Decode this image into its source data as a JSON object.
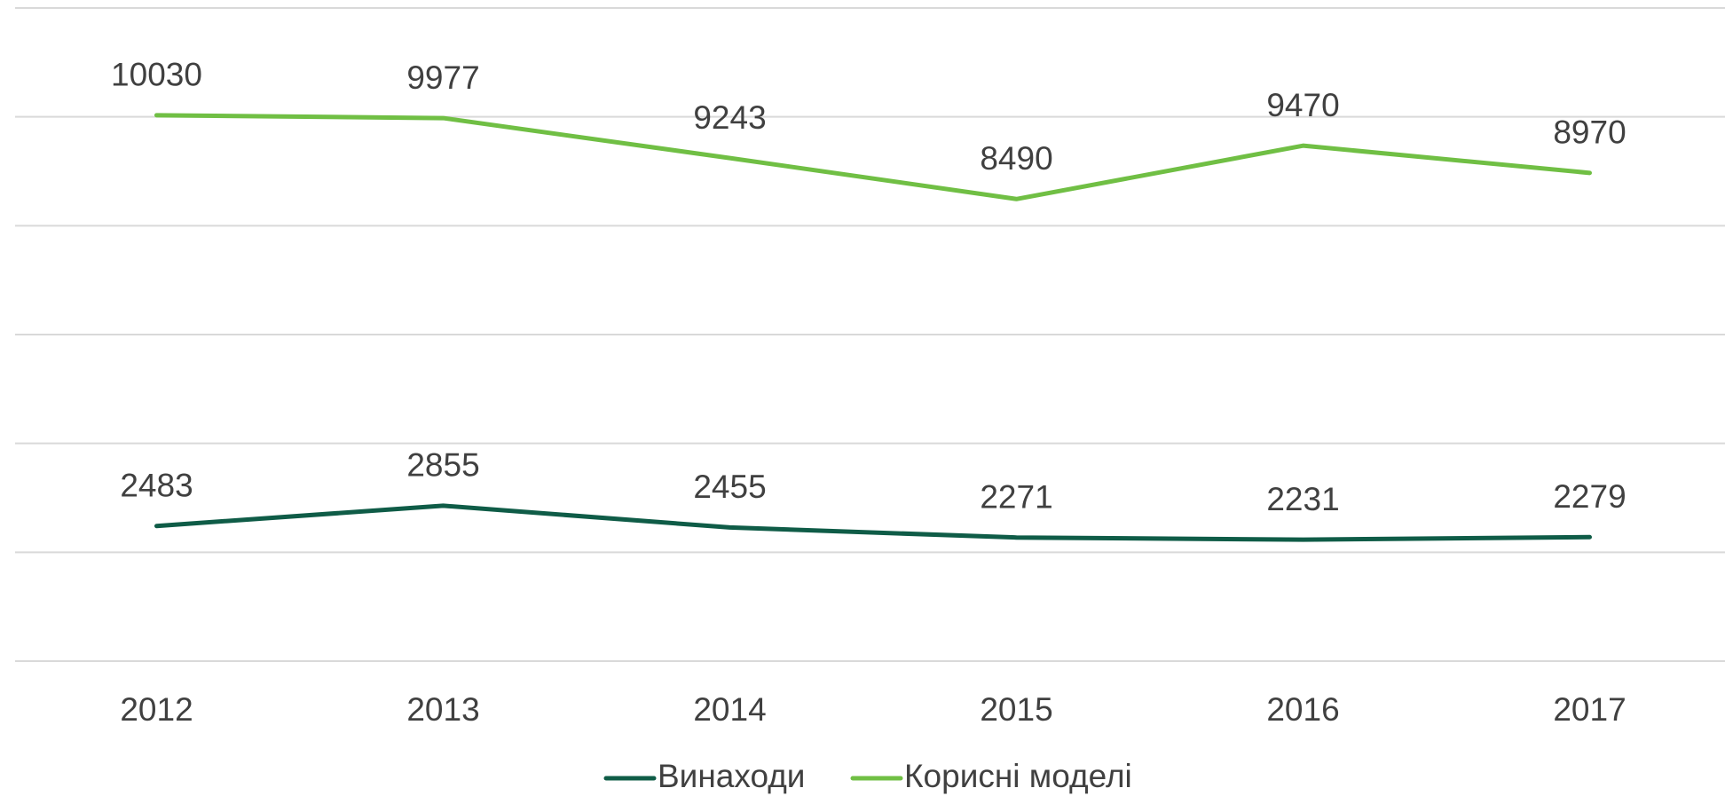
{
  "chart_data": {
    "type": "line",
    "categories": [
      "2012",
      "2013",
      "2014",
      "2015",
      "2016",
      "2017"
    ],
    "series": [
      {
        "name": "Винаходи",
        "color": "#0f5c47",
        "values": [
          2483,
          2855,
          2455,
          2271,
          2231,
          2279
        ]
      },
      {
        "name": "Корисні моделі",
        "color": "#70bf44",
        "values": [
          10030,
          9977,
          9243,
          8490,
          9470,
          8970
        ]
      }
    ],
    "ylim": [
      0,
      12000
    ],
    "yticks": [
      0,
      2000,
      4000,
      6000,
      8000,
      10000,
      12000
    ],
    "grid": true,
    "legend": "bottom"
  }
}
